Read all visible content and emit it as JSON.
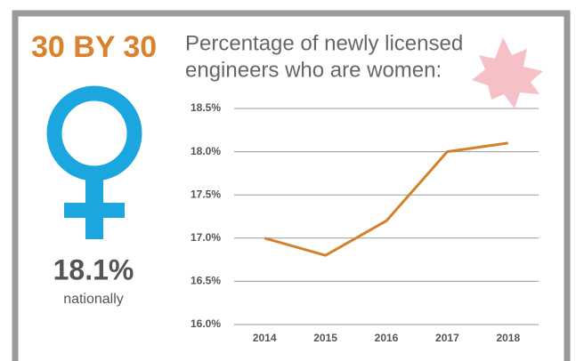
{
  "chart_data": {
    "type": "line",
    "headline": "30 BY 30",
    "title": [
      "Percentage of newly licensed",
      "engineers who are women:"
    ],
    "stat": "18.1%",
    "stat_caption": "nationally",
    "categories": [
      "2014",
      "2015",
      "2016",
      "2017",
      "2018"
    ],
    "values": [
      17.0,
      16.8,
      17.2,
      18.0,
      18.1
    ],
    "color": "#d4822a",
    "ylim": [
      16.0,
      18.5
    ],
    "yticks": [
      {
        "value": 16.0,
        "label": "16.0%"
      },
      {
        "value": 16.5,
        "label": "16.5%"
      },
      {
        "value": 17.0,
        "label": "17.0%"
      },
      {
        "value": 17.5,
        "label": "17.5%"
      },
      {
        "value": 18.0,
        "label": "18.0%"
      },
      {
        "value": 18.5,
        "label": "18.5%"
      }
    ],
    "grid": true
  }
}
